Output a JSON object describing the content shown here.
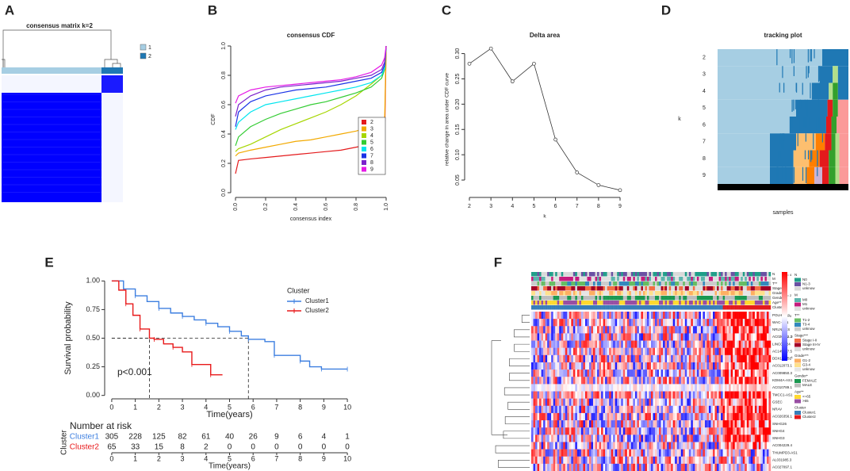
{
  "chart_data": [
    {
      "panel": "A",
      "type": "consensus_matrix",
      "title": "consensus matrix k=2",
      "legend": [
        {
          "name": "1",
          "color": "#a6cee3"
        },
        {
          "name": "2",
          "color": "#1f78b4"
        }
      ]
    },
    {
      "panel": "B",
      "type": "cdf",
      "title": "consensus CDF",
      "xlabel": "consensus index",
      "ylabel": "CDF",
      "x": [
        0,
        0.02,
        0.1,
        0.2,
        0.3,
        0.4,
        0.5,
        0.6,
        0.7,
        0.8,
        0.9,
        0.97,
        0.99,
        1
      ],
      "xlim": [
        0,
        1
      ],
      "ylim": [
        0,
        1
      ],
      "xticks": [
        {
          "value": 0,
          "label": "0.0"
        },
        0.2,
        0.4,
        0.6,
        0.8,
        {
          "value": 1,
          "label": "1.0"
        }
      ],
      "yticks": [
        {
          "value": 0,
          "label": "0.0"
        },
        0.2,
        0.4,
        0.6,
        0.8,
        {
          "value": 1,
          "label": "1.0"
        }
      ],
      "series": [
        {
          "name": "2",
          "color": "#e41a1c",
          "values": [
            0.13,
            0.22,
            0.23,
            0.24,
            0.25,
            0.26,
            0.27,
            0.28,
            0.29,
            0.31,
            0.33,
            0.36,
            0.38,
            1
          ]
        },
        {
          "name": "3",
          "color": "#f2a900",
          "values": [
            0.25,
            0.27,
            0.29,
            0.31,
            0.33,
            0.35,
            0.36,
            0.38,
            0.4,
            0.42,
            0.45,
            0.47,
            0.5,
            1
          ]
        },
        {
          "name": "4",
          "color": "#a6d600",
          "values": [
            0.28,
            0.3,
            0.33,
            0.38,
            0.43,
            0.47,
            0.51,
            0.55,
            0.6,
            0.66,
            0.74,
            0.8,
            0.85,
            1
          ]
        },
        {
          "name": "5",
          "color": "#33cc33",
          "values": [
            0.32,
            0.38,
            0.45,
            0.5,
            0.54,
            0.57,
            0.6,
            0.62,
            0.65,
            0.68,
            0.72,
            0.78,
            0.84,
            1
          ]
        },
        {
          "name": "6",
          "color": "#00e5ee",
          "values": [
            0.43,
            0.48,
            0.55,
            0.6,
            0.62,
            0.64,
            0.66,
            0.68,
            0.7,
            0.72,
            0.75,
            0.8,
            0.85,
            1
          ]
        },
        {
          "name": "7",
          "color": "#1a33e6",
          "values": [
            0.45,
            0.55,
            0.62,
            0.66,
            0.68,
            0.7,
            0.71,
            0.72,
            0.74,
            0.76,
            0.78,
            0.82,
            0.87,
            1
          ]
        },
        {
          "name": "8",
          "color": "#7b22cc",
          "values": [
            0.52,
            0.6,
            0.66,
            0.7,
            0.72,
            0.73,
            0.74,
            0.75,
            0.76,
            0.78,
            0.8,
            0.84,
            0.89,
            1
          ]
        },
        {
          "name": "9",
          "color": "#e61ae6",
          "values": [
            0.61,
            0.66,
            0.7,
            0.72,
            0.73,
            0.74,
            0.75,
            0.76,
            0.77,
            0.79,
            0.82,
            0.87,
            0.92,
            1
          ]
        }
      ]
    },
    {
      "panel": "C",
      "type": "line",
      "title": "Delta area",
      "xlabel": "k",
      "ylabel": "relative change in area under CDF curve",
      "x": [
        2,
        3,
        4,
        5,
        6,
        7,
        8,
        9
      ],
      "values": [
        0.28,
        0.31,
        0.245,
        0.28,
        0.13,
        0.065,
        0.04,
        0.03
      ],
      "xlim": [
        2,
        9
      ],
      "ylim": [
        0.025,
        0.315
      ],
      "xticks": [
        2,
        3,
        4,
        5,
        6,
        7,
        8,
        9
      ],
      "yticks": [
        0.05,
        {
          "value": 0.1,
          "label": "0.10"
        },
        0.15,
        {
          "value": 0.2,
          "label": "0.20"
        },
        0.25,
        {
          "value": 0.3,
          "label": "0.30"
        }
      ]
    },
    {
      "panel": "D",
      "type": "tracking",
      "title": "tracking plot",
      "xlabel": "samples",
      "ylabel": "k",
      "categories": [
        "2",
        "3",
        "4",
        "5",
        "6",
        "7",
        "8",
        "9"
      ]
    },
    {
      "panel": "E",
      "type": "survival",
      "xlabel": "Time(years)",
      "ylabel": "Survival probability",
      "xlim": [
        -0.3,
        10.3
      ],
      "ylim": [
        -0.03,
        1.03
      ],
      "xticks": [
        0,
        1,
        2,
        3,
        4,
        5,
        6,
        7,
        8,
        9,
        10
      ],
      "yticks": [
        {
          "value": 0,
          "label": "0.00"
        },
        0.25,
        {
          "value": 0.5,
          "label": "0.50"
        },
        0.75,
        {
          "value": 1,
          "label": "1.00"
        }
      ],
      "legend_title": "Cluster",
      "annotation": "p<0.001",
      "series": [
        {
          "name": "Cluster1",
          "color": "#3d7fe0",
          "median": 5.8,
          "x": [
            0,
            0.5,
            1,
            1.5,
            2,
            2.5,
            3,
            3.5,
            4,
            4.5,
            5,
            5.5,
            5.8,
            6.5,
            6.9,
            7.5,
            8,
            8.4,
            8.9,
            9.5,
            10
          ],
          "values": [
            1,
            0.93,
            0.87,
            0.82,
            0.76,
            0.72,
            0.69,
            0.66,
            0.63,
            0.6,
            0.56,
            0.52,
            0.49,
            0.47,
            0.35,
            0.35,
            0.3,
            0.25,
            0.23,
            0.23,
            0.23
          ]
        },
        {
          "name": "Cluster2",
          "color": "#e8191a",
          "median": 1.6,
          "x": [
            0,
            0.3,
            0.6,
            0.9,
            1.2,
            1.6,
            1.8,
            2.2,
            2.6,
            3,
            3.4,
            3.8,
            4.2,
            4.7
          ],
          "values": [
            1,
            0.92,
            0.8,
            0.7,
            0.58,
            0.5,
            0.49,
            0.45,
            0.42,
            0.38,
            0.27,
            0.27,
            0.18,
            0.18
          ]
        }
      ],
      "risk_table": {
        "title": "Number at risk",
        "ylabel": "Cluster",
        "xlabel": "Time(years)",
        "xticks": [
          0,
          1,
          2,
          3,
          4,
          5,
          6,
          7,
          8,
          9,
          10
        ],
        "rows": [
          {
            "name": "Cluster1",
            "color": "#3d7fe0",
            "values": [
              305,
              228,
              125,
              82,
              61,
              40,
              26,
              9,
              6,
              4,
              1
            ]
          },
          {
            "name": "Cluster2",
            "color": "#e8191a",
            "values": [
              65,
              33,
              15,
              8,
              2,
              0,
              0,
              0,
              0,
              0,
              0
            ]
          }
        ]
      }
    },
    {
      "panel": "F",
      "type": "heatmap",
      "annotations": [
        "N",
        "M",
        "T**",
        "Stage***",
        "Grade***",
        "Gender*",
        "Age**",
        "Cluster"
      ],
      "genes": [
        "POLH-AS1",
        "WAC-AS1",
        "NRLN1-AS",
        "AC026412.3",
        "LINC01224",
        "AC145207.5",
        "DDX11-AS1",
        "AC012073.1",
        "AC009850.3",
        "KDM4A-AS1",
        "AC010789.1",
        "TMCC1-AS1",
        "GSEC",
        "NRAV",
        "AC026356.1",
        "SNHG26",
        "SNHG4",
        "SNHG3",
        "AC004229.4",
        "THUMPD3-AS1",
        "AL031985.3",
        "AC027097.1"
      ],
      "colorbar": {
        "ticks": [
          4,
          2,
          0,
          -2,
          -4
        ],
        "colors": [
          "#ff0000",
          "#ffffff",
          "#0000ff"
        ]
      },
      "legend": [
        {
          "title": "N",
          "items": [
            "N0",
            "N1-3",
            "unknow"
          ],
          "colors": [
            "#1f9e89",
            "#6a51a3",
            "#d9d9d9"
          ]
        },
        {
          "title": "M",
          "items": [
            "M0",
            "M1",
            "unknow"
          ],
          "colors": [
            "#5ab4ac",
            "#c51b7d",
            "#e0e0e0"
          ]
        },
        {
          "title": "T**",
          "items": [
            "T1-2",
            "T3-4",
            "unknow"
          ],
          "colors": [
            "#66bd63",
            "#3288bd",
            "#cccccc"
          ]
        },
        {
          "title": "Stage***",
          "items": [
            "Stage I-II",
            "Stage III-IV",
            "unknow"
          ],
          "colors": [
            "#f46d43",
            "#a50026",
            "#dddddd"
          ]
        },
        {
          "title": "Grade***",
          "items": [
            "G1-2",
            "G3-4",
            "unknow"
          ],
          "colors": [
            "#fdae61",
            "#fee08b",
            "#e5e5e5"
          ]
        },
        {
          "title": "Gender*",
          "items": [
            "FEMALE",
            "MALE"
          ],
          "colors": [
            "#1a9850",
            "#bdbdbd"
          ]
        },
        {
          "title": "Age**",
          "items": [
            "<=65",
            ">65"
          ],
          "colors": [
            "#ffd92f",
            "#984ea3"
          ]
        },
        {
          "title": "Cluster",
          "items": [
            "Cluster1",
            "Cluster2"
          ],
          "colors": [
            "#377eb8",
            "#e41a1c"
          ]
        }
      ]
    }
  ]
}
